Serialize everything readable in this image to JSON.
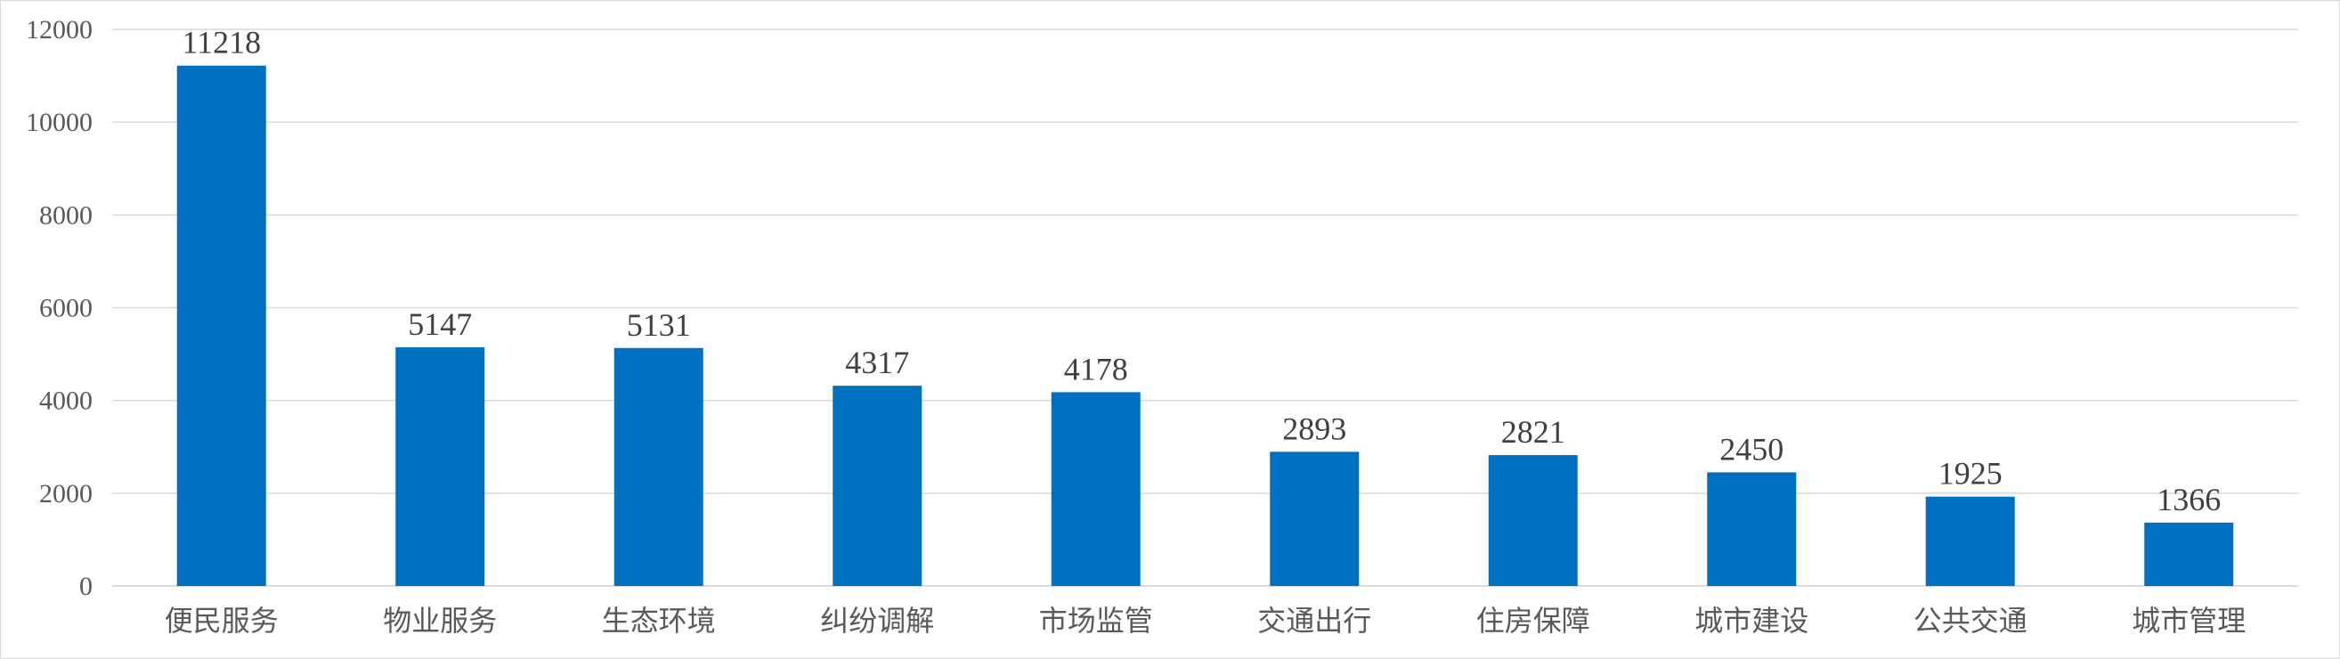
{
  "chart_data": {
    "type": "bar",
    "title": "",
    "xlabel": "",
    "ylabel": "",
    "categories": [
      "便民服务",
      "物业服务",
      "生态环境",
      "纠纷调解",
      "市场监管",
      "交通出行",
      "住房保障",
      "城市建设",
      "公共交通",
      "城市管理"
    ],
    "values": [
      11218,
      5147,
      5131,
      4317,
      4178,
      2893,
      2821,
      2450,
      1925,
      1366
    ],
    "ylim": [
      0,
      12000
    ],
    "yticks": [
      0,
      2000,
      4000,
      6000,
      8000,
      10000,
      12000
    ],
    "grid": true,
    "legend": "none",
    "bar_color": "#0070C0"
  }
}
